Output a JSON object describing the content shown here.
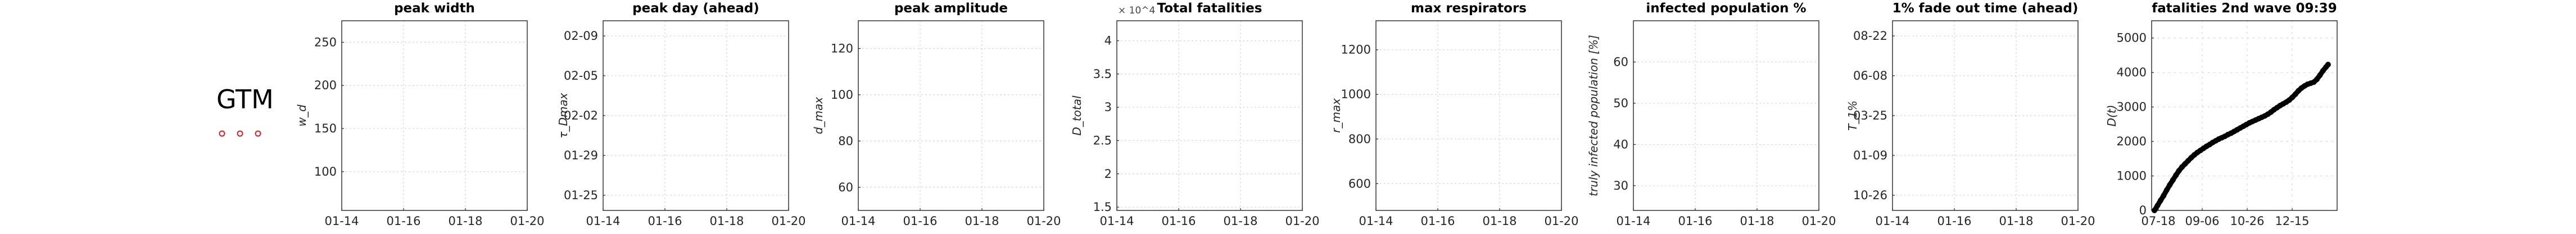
{
  "country": {
    "code": "GTM",
    "marker_color": "#e41a1c",
    "markers": [
      "o",
      "o",
      "o"
    ]
  },
  "chart_data": [
    {
      "type": "scatter",
      "title": "peak width",
      "ylabel": "w_d",
      "ylabel_sub": "d",
      "xlabel": "",
      "x_ticks": [
        "01-14",
        "01-16",
        "01-18",
        "01-20"
      ],
      "y_ticks": [
        "100",
        "150",
        "200",
        "250"
      ],
      "ylim": [
        55,
        275
      ],
      "grid": true,
      "points": []
    },
    {
      "type": "scatter",
      "title": "peak day (ahead)",
      "ylabel": "τ_Dmax",
      "ylabel_sub": "Dmax",
      "xlabel": "",
      "x_ticks": [
        "01-14",
        "01-16",
        "01-18",
        "01-20"
      ],
      "y_ticks": [
        "01-25",
        "01-29",
        "02-02",
        "02-05",
        "02-09"
      ],
      "grid": true,
      "points": []
    },
    {
      "type": "scatter",
      "title": "peak amplitude",
      "ylabel": "d_max",
      "ylabel_sub": "max",
      "xlabel": "",
      "x_ticks": [
        "01-14",
        "01-16",
        "01-18",
        "01-20"
      ],
      "y_ticks": [
        "60",
        "80",
        "100",
        "120"
      ],
      "ylim": [
        50,
        132
      ],
      "grid": true,
      "points": []
    },
    {
      "type": "scatter",
      "title": "Total fatalities",
      "multiplier": "× 10^4",
      "ylabel": "D_total",
      "ylabel_sub": "total",
      "xlabel": "",
      "x_ticks": [
        "01-14",
        "01-16",
        "01-18",
        "01-20"
      ],
      "y_ticks": [
        "1.5",
        "2",
        "2.5",
        "3",
        "3.5",
        "4"
      ],
      "ylim": [
        1.45,
        4.3
      ],
      "grid": true,
      "points": []
    },
    {
      "type": "scatter",
      "title": "max respirators",
      "ylabel": "r_max",
      "ylabel_sub": "max",
      "xlabel": "",
      "x_ticks": [
        "01-14",
        "01-16",
        "01-18",
        "01-20"
      ],
      "y_ticks": [
        "600",
        "800",
        "1000",
        "1200"
      ],
      "ylim": [
        480,
        1330
      ],
      "grid": true,
      "points": []
    },
    {
      "type": "scatter",
      "title": "infected population %",
      "ylabel": "truly infected population [%]",
      "xlabel": "",
      "x_ticks": [
        "01-14",
        "01-16",
        "01-18",
        "01-20"
      ],
      "y_ticks": [
        "30",
        "40",
        "50",
        "60"
      ],
      "ylim": [
        24,
        70
      ],
      "grid": true,
      "points": []
    },
    {
      "type": "scatter",
      "title": "1% fade out time (ahead)",
      "ylabel": "T_1%",
      "ylabel_sub": "1%",
      "xlabel": "",
      "x_ticks": [
        "01-14",
        "01-16",
        "01-18",
        "01-20"
      ],
      "y_ticks": [
        "10-26",
        "01-09",
        "03-25",
        "06-08",
        "08-22"
      ],
      "grid": true,
      "points": []
    },
    {
      "type": "line",
      "title": "fatalities 2nd wave 09:39",
      "ylabel": "D(t)",
      "xlabel": "",
      "x_ticks": [
        "07-18",
        "09-06",
        "10-26",
        "12-15"
      ],
      "y_ticks": [
        "0",
        "1000",
        "2000",
        "3000",
        "4000",
        "5000"
      ],
      "ylim": [
        0,
        5500
      ],
      "grid": true,
      "series": [
        {
          "values": [
            [
              0,
              0
            ],
            [
              3,
              140
            ],
            [
              6,
              290
            ],
            [
              9,
              430
            ],
            [
              12,
              590
            ],
            [
              15,
              740
            ],
            [
              18,
              880
            ],
            [
              21,
              1020
            ],
            [
              24,
              1150
            ],
            [
              27,
              1260
            ],
            [
              30,
              1350
            ],
            [
              33,
              1440
            ],
            [
              36,
              1530
            ],
            [
              39,
              1610
            ],
            [
              42,
              1680
            ],
            [
              45,
              1740
            ],
            [
              48,
              1800
            ],
            [
              51,
              1860
            ],
            [
              54,
              1910
            ],
            [
              57,
              1970
            ],
            [
              60,
              2020
            ],
            [
              63,
              2070
            ],
            [
              66,
              2110
            ],
            [
              69,
              2150
            ],
            [
              72,
              2200
            ],
            [
              75,
              2240
            ],
            [
              78,
              2290
            ],
            [
              81,
              2340
            ],
            [
              84,
              2390
            ],
            [
              87,
              2440
            ],
            [
              90,
              2490
            ],
            [
              93,
              2540
            ],
            [
              96,
              2580
            ],
            [
              99,
              2620
            ],
            [
              102,
              2660
            ],
            [
              105,
              2700
            ],
            [
              108,
              2740
            ],
            [
              111,
              2790
            ],
            [
              114,
              2850
            ],
            [
              117,
              2920
            ],
            [
              120,
              2980
            ],
            [
              123,
              3040
            ],
            [
              126,
              3090
            ],
            [
              129,
              3140
            ],
            [
              132,
              3200
            ],
            [
              135,
              3280
            ],
            [
              138,
              3370
            ],
            [
              141,
              3470
            ],
            [
              144,
              3550
            ],
            [
              147,
              3610
            ],
            [
              150,
              3660
            ],
            [
              153,
              3690
            ],
            [
              156,
              3720
            ],
            [
              159,
              3800
            ],
            [
              162,
              3920
            ],
            [
              165,
              4050
            ],
            [
              168,
              4160
            ],
            [
              170,
              4230
            ]
          ]
        }
      ]
    }
  ]
}
